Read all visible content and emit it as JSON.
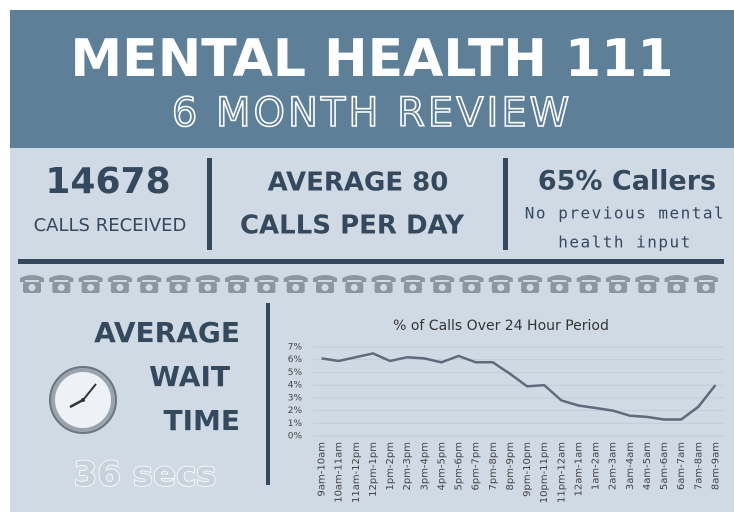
{
  "header": {
    "title": "MENTAL HEALTH 111",
    "subtitle": "6 MONTH REVIEW"
  },
  "stats": [
    {
      "value": "14678",
      "label": "CALLS RECEIVED"
    },
    {
      "line1": "AVERAGE 80",
      "line2": "CALLS PER DAY"
    },
    {
      "value": "65% Callers",
      "label1": "No previous mental",
      "label2": "health input"
    }
  ],
  "wait": {
    "line1": "AVERAGE",
    "line2": "WAIT",
    "line3": "TIME",
    "value": "36 secs"
  },
  "chart_data": {
    "type": "line",
    "title": "% of Calls Over 24 Hour Period",
    "categories": [
      "9am-10am",
      "10am-11am",
      "11am-12pm",
      "12pm-1pm",
      "1pm-2pm",
      "2pm-3pm",
      "3pm-4pm",
      "4pm-5pm",
      "5pm-6pm",
      "6pm-7pm",
      "7pm-8pm",
      "8pm-9pm",
      "9pm-10pm",
      "10pm-11pm",
      "11pm-12am",
      "12am-1am",
      "1am-2am",
      "2am-3am",
      "3am-4am",
      "4am-5am",
      "5am-6am",
      "6am-7am",
      "7am-8am",
      "8am-9am"
    ],
    "values": [
      6.1,
      5.9,
      6.2,
      6.5,
      5.9,
      6.2,
      6.1,
      5.8,
      6.3,
      5.8,
      5.8,
      4.9,
      3.9,
      4.0,
      2.8,
      2.4,
      2.2,
      2.0,
      1.6,
      1.5,
      1.3,
      1.3,
      2.3,
      4.0
    ],
    "color": "#5d6b7a",
    "ylim": [
      0,
      7
    ],
    "yticks": [
      {
        "value": 0,
        "label": "0%"
      },
      {
        "value": 1,
        "label": "1%"
      },
      {
        "value": 2,
        "label": "2%"
      },
      {
        "value": 3,
        "label": "3%"
      },
      {
        "value": 4,
        "label": "4%"
      },
      {
        "value": 5,
        "label": "5%"
      },
      {
        "value": 6,
        "label": "6%"
      },
      {
        "value": 7,
        "label": "7%"
      }
    ],
    "grid": true
  }
}
